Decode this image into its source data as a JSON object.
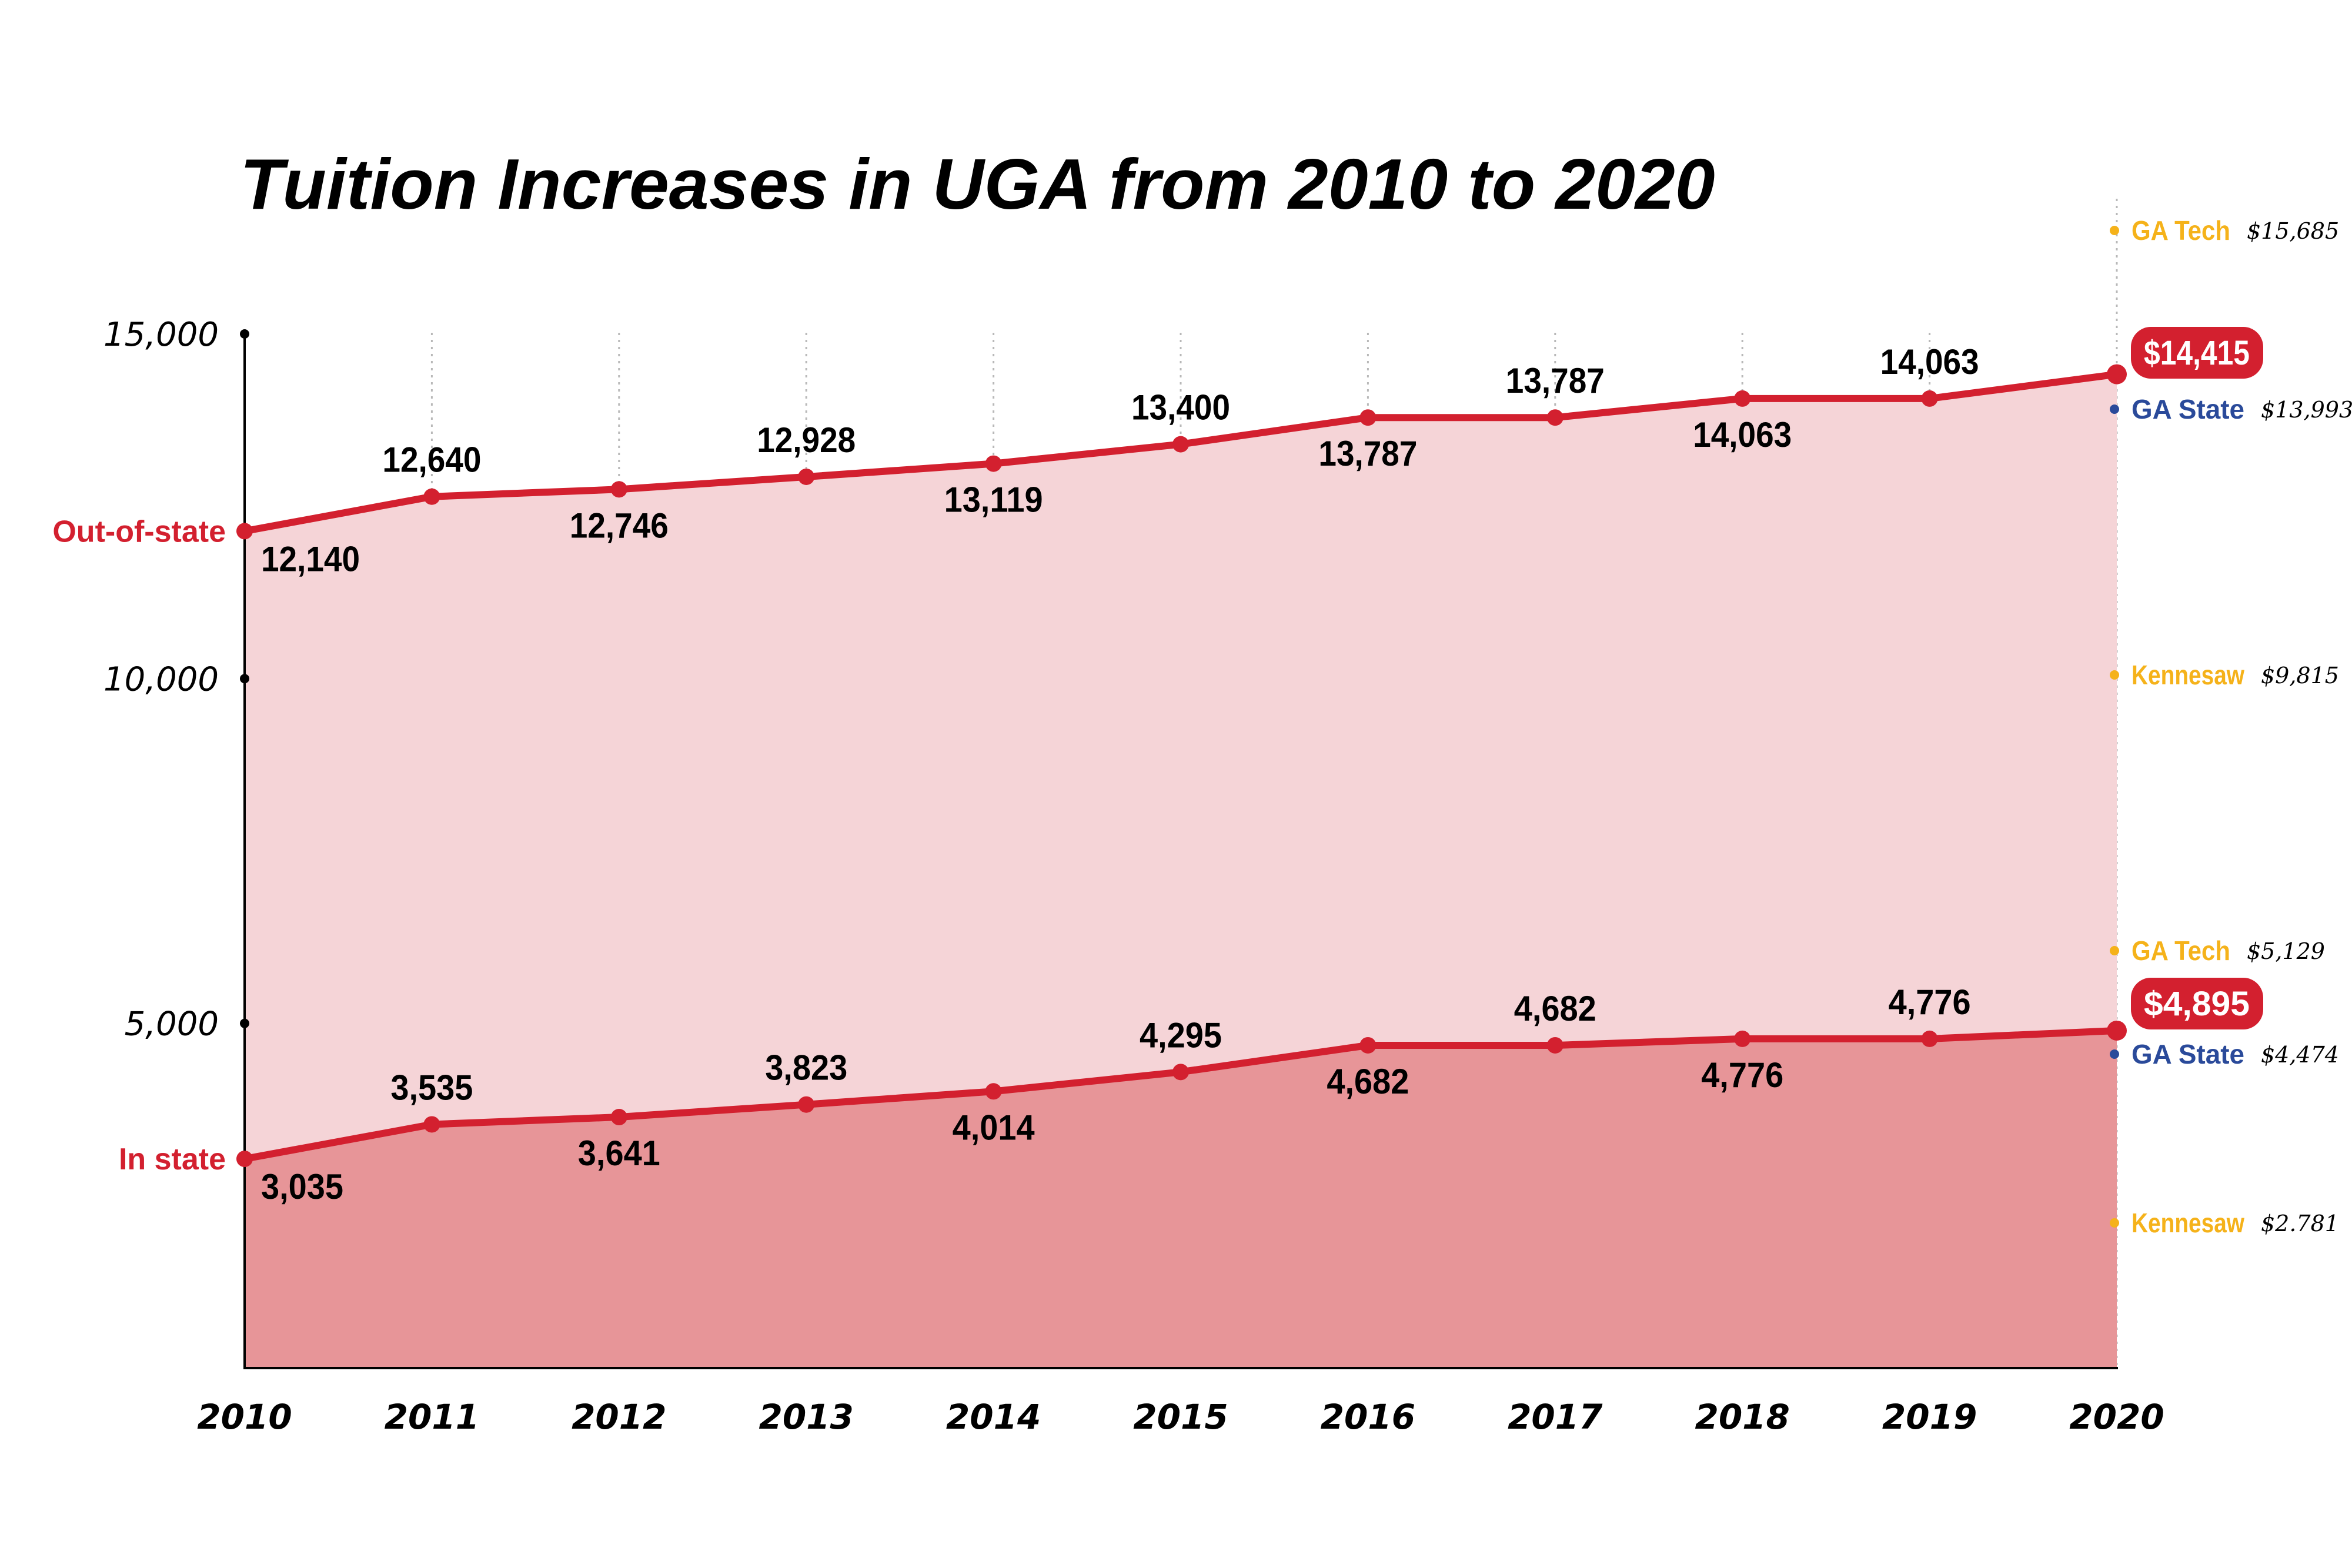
{
  "chart_data": {
    "type": "area",
    "title": "Tuition Increases in UGA from 2010 to 2020",
    "x": [
      "2010",
      "2011",
      "2012",
      "2013",
      "2014",
      "2015",
      "2016",
      "2017",
      "2018",
      "2019",
      "2020"
    ],
    "ylim": [
      0,
      15000
    ],
    "yticks": [
      5000,
      10000,
      15000
    ],
    "ytick_labels": [
      "5,000",
      "10,000",
      "15,000"
    ],
    "grid": "vertical dotted",
    "series": [
      {
        "name": "Out-of-state",
        "values": [
          12140,
          12640,
          12746,
          12928,
          13119,
          13400,
          13787,
          13787,
          14063,
          14063,
          14415
        ],
        "labels": [
          "12,140",
          "12,640",
          "12,746",
          "12,928",
          "13,119",
          "13,400",
          "13,787",
          "13,787",
          "14,063",
          "14,063",
          "$14,415"
        ],
        "color": "#d3202f",
        "fill": "#f5d4d7"
      },
      {
        "name": "In state",
        "values": [
          3035,
          3535,
          3641,
          3823,
          4014,
          4295,
          4682,
          4682,
          4776,
          4776,
          4895
        ],
        "labels": [
          "3,035",
          "3,535",
          "3,641",
          "3,823",
          "4,014",
          "4,295",
          "4,682",
          "4,682",
          "4,776",
          "4,776",
          "$4,895"
        ],
        "color": "#d3202f",
        "fill": "#e79598"
      }
    ],
    "comparisons": [
      {
        "school": "GA Tech",
        "value": 15685,
        "label": "$15,685",
        "color": "#f5b21a"
      },
      {
        "school": "GA State",
        "value": 13993,
        "label": "$13,993",
        "color": "#2a4a9a"
      },
      {
        "school": "Kennesaw",
        "value": 9815,
        "label": "$9,815",
        "color": "#f5b21a"
      },
      {
        "school": "GA Tech",
        "value": 5129,
        "label": "$5,129",
        "color": "#f5b21a"
      },
      {
        "school": "GA State",
        "value": 4474,
        "label": "$4,474",
        "color": "#2a4a9a"
      },
      {
        "school": "Kennesaw",
        "value": 2781,
        "label": "$2.781",
        "color": "#f5b21a"
      }
    ]
  }
}
